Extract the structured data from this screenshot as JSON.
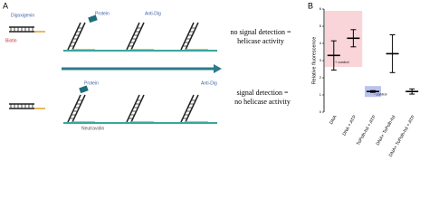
{
  "diagram": {
    "panel_label": "A",
    "digoxigenin": "Digoxigenin",
    "biotin": "Biotin",
    "protein_top": "Protein",
    "anti_dig_top": "Anti-Dig",
    "outcome_top": [
      "no signal detection =",
      "helicase activity"
    ],
    "neutravidin": "Neutravidin",
    "protein_bottom": "Protein",
    "anti_dig_bottom": "Anti-Dig",
    "outcome_bottom": [
      "signal detection =",
      "no helicase activity"
    ]
  },
  "chart_data": {
    "type": "errorbar",
    "panel_label": "B",
    "ylabel": "Relative fluorescence",
    "categories": [
      "DNA",
      "DNA + ATP",
      "ToPolh-hd + ATP",
      "DNA+ ToPolh-hd",
      "DNA+ ToPolh-hd + ATP"
    ],
    "values": [
      3.3,
      4.3,
      1.2,
      3.4,
      1.2
    ],
    "errors": [
      0.85,
      0.5,
      0.05,
      1.1,
      0.15
    ],
    "color": "#000000",
    "ylim": [
      0,
      6
    ],
    "yticks": [
      0,
      1,
      2,
      3,
      4,
      5,
      6
    ],
    "annotations": [
      {
        "text": "+ control",
        "color": "#f9d4d8"
      },
      {
        "text": "- control",
        "color": "#b9c3ef"
      }
    ]
  }
}
